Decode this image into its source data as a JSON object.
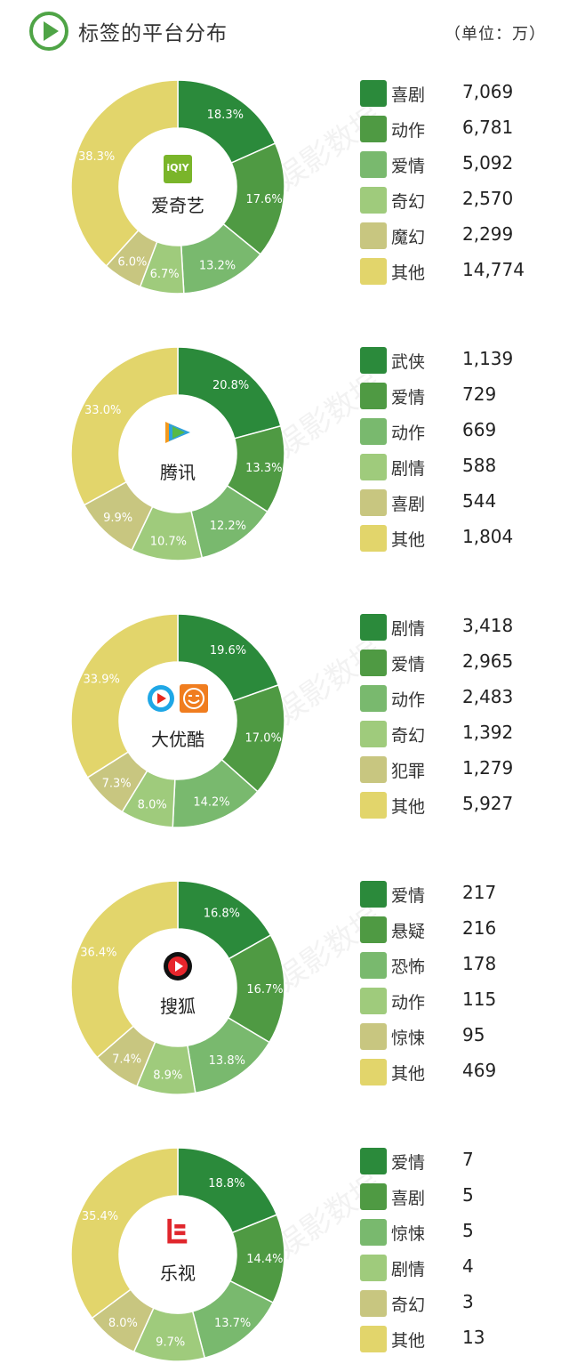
{
  "header": {
    "title": "标签的平台分布",
    "unit": "（单位：万）"
  },
  "colors": [
    "#2b8a3b",
    "#4f9a43",
    "#79b96e",
    "#9fcb7c",
    "#c8c680",
    "#e2d56b"
  ],
  "watermark": "娱影数据",
  "platforms": [
    {
      "name": "爱奇艺",
      "logo_text": "iQIY",
      "chart_data": {
        "type": "pie",
        "title": "",
        "categories": [
          "喜剧",
          "动作",
          "爱情",
          "奇幻",
          "魔幻",
          "其他"
        ],
        "values": [
          7069,
          6781,
          5092,
          2570,
          2299,
          14774
        ],
        "value_labels": [
          "7,069",
          "6,781",
          "5,092",
          "2,570",
          "2,299",
          "14,774"
        ],
        "percent_labels": [
          "18.3%",
          "17.6%",
          "13.2%",
          "6.7%",
          "6.0%",
          "38.3%"
        ]
      }
    },
    {
      "name": "腾讯",
      "logo_text": "",
      "chart_data": {
        "type": "pie",
        "title": "",
        "categories": [
          "武侠",
          "爱情",
          "动作",
          "剧情",
          "喜剧",
          "其他"
        ],
        "values": [
          1139,
          729,
          669,
          588,
          544,
          1804
        ],
        "value_labels": [
          "1,139",
          "729",
          "669",
          "588",
          "544",
          "1,804"
        ],
        "percent_labels": [
          "20.8%",
          "13.3%",
          "12.2%",
          "10.7%",
          "9.9%",
          "33.0%"
        ]
      }
    },
    {
      "name": "大优酷",
      "logo_text": "",
      "chart_data": {
        "type": "pie",
        "title": "",
        "categories": [
          "剧情",
          "爱情",
          "动作",
          "奇幻",
          "犯罪",
          "其他"
        ],
        "values": [
          3418,
          2965,
          2483,
          1392,
          1279,
          5927
        ],
        "value_labels": [
          "3,418",
          "2,965",
          "2,483",
          "1,392",
          "1,279",
          "5,927"
        ],
        "percent_labels": [
          "19.6%",
          "17.0%",
          "14.2%",
          "8.0%",
          "7.3%",
          "33.9%"
        ]
      }
    },
    {
      "name": "搜狐",
      "logo_text": "",
      "chart_data": {
        "type": "pie",
        "title": "",
        "categories": [
          "爱情",
          "悬疑",
          "恐怖",
          "动作",
          "惊悚",
          "其他"
        ],
        "values": [
          217,
          216,
          178,
          115,
          95,
          469
        ],
        "value_labels": [
          "217",
          "216",
          "178",
          "115",
          "95",
          "469"
        ],
        "percent_labels": [
          "16.8%",
          "16.7%",
          "13.8%",
          "8.9%",
          "7.4%",
          "36.4%"
        ]
      }
    },
    {
      "name": "乐视",
      "logo_text": "",
      "chart_data": {
        "type": "pie",
        "title": "",
        "categories": [
          "爱情",
          "喜剧",
          "惊悚",
          "剧情",
          "奇幻",
          "其他"
        ],
        "values": [
          7,
          5,
          5,
          4,
          3,
          13
        ],
        "value_labels": [
          "7",
          "5",
          "5",
          "4",
          "3",
          "13"
        ],
        "percent_labels": [
          "18.8%",
          "14.4%",
          "13.7%",
          "9.7%",
          "8.0%",
          "35.4%"
        ]
      }
    }
  ]
}
